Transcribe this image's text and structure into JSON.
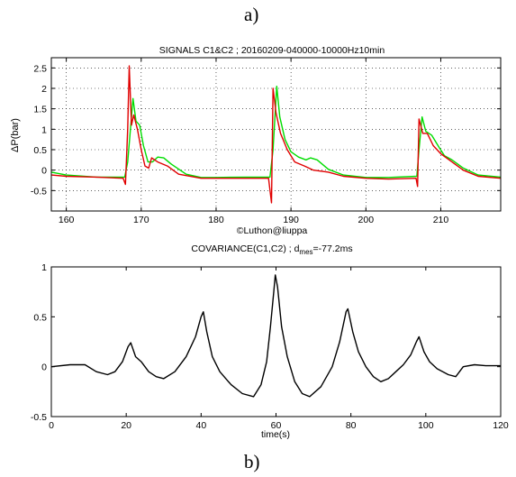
{
  "panel_labels": {
    "a": "a)",
    "b": "b)"
  },
  "chart_data": [
    {
      "type": "line",
      "title": "SIGNALS C1&C2 ; 20160209-040000-10000Hz10min",
      "ylabel": "ΔP(bar)",
      "xlabel": "",
      "credit": "©Luthon@liuppa",
      "xlim": [
        158,
        218
      ],
      "ylim": [
        -1,
        2.75
      ],
      "xticks": [
        "160",
        "170",
        "180",
        "190",
        "200",
        "210"
      ],
      "yticks": [
        "-0.5",
        "0",
        "0.5",
        "1",
        "1.5",
        "2",
        "2.5"
      ],
      "grid": true,
      "series": [
        {
          "color": "#00dd00",
          "points": [
            [
              158,
              -0.05
            ],
            [
              160,
              -0.12
            ],
            [
              164,
              -0.17
            ],
            [
              167.8,
              -0.17
            ],
            [
              168.2,
              0.2
            ],
            [
              168.9,
              1.75
            ],
            [
              169.3,
              1.2
            ],
            [
              169.8,
              1.1
            ],
            [
              170.3,
              0.6
            ],
            [
              170.9,
              0.2
            ],
            [
              171.5,
              0.2
            ],
            [
              172.2,
              0.32
            ],
            [
              173,
              0.3
            ],
            [
              174,
              0.15
            ],
            [
              176,
              -0.1
            ],
            [
              178,
              -0.18
            ],
            [
              180,
              -0.18
            ],
            [
              184,
              -0.17
            ],
            [
              187.2,
              -0.17
            ],
            [
              187.6,
              0.5
            ],
            [
              188.1,
              2.05
            ],
            [
              188.5,
              1.3
            ],
            [
              189.2,
              0.75
            ],
            [
              190,
              0.45
            ],
            [
              191,
              0.32
            ],
            [
              192,
              0.25
            ],
            [
              192.6,
              0.3
            ],
            [
              193.5,
              0.25
            ],
            [
              195,
              0.02
            ],
            [
              197,
              -0.12
            ],
            [
              200,
              -0.18
            ],
            [
              203,
              -0.18
            ],
            [
              206.8,
              -0.15
            ],
            [
              207.1,
              0.5
            ],
            [
              207.5,
              1.3
            ],
            [
              208,
              0.95
            ],
            [
              208.8,
              0.85
            ],
            [
              209.8,
              0.55
            ],
            [
              210.5,
              0.35
            ],
            [
              211.5,
              0.25
            ],
            [
              213,
              0.05
            ],
            [
              215,
              -0.12
            ],
            [
              218,
              -0.17
            ]
          ]
        },
        {
          "color": "#e00000",
          "points": [
            [
              158,
              -0.12
            ],
            [
              160,
              -0.15
            ],
            [
              164,
              -0.17
            ],
            [
              167.6,
              -0.2
            ],
            [
              167.9,
              -0.35
            ],
            [
              168.2,
              1.0
            ],
            [
              168.4,
              2.55
            ],
            [
              168.7,
              1.1
            ],
            [
              169,
              1.35
            ],
            [
              169.5,
              1.0
            ],
            [
              170,
              0.5
            ],
            [
              170.5,
              0.1
            ],
            [
              171,
              0.05
            ],
            [
              171.4,
              0.3
            ],
            [
              172.2,
              0.2
            ],
            [
              173.5,
              0.1
            ],
            [
              175,
              -0.1
            ],
            [
              178,
              -0.2
            ],
            [
              182,
              -0.2
            ],
            [
              187,
              -0.2
            ],
            [
              187.4,
              -0.8
            ],
            [
              187.6,
              2.0
            ],
            [
              188,
              1.4
            ],
            [
              188.6,
              0.9
            ],
            [
              189.5,
              0.5
            ],
            [
              190.5,
              0.2
            ],
            [
              191.8,
              0.1
            ],
            [
              193,
              0.0
            ],
            [
              195,
              -0.05
            ],
            [
              197,
              -0.15
            ],
            [
              200,
              -0.2
            ],
            [
              203,
              -0.22
            ],
            [
              206.7,
              -0.2
            ],
            [
              206.9,
              -0.4
            ],
            [
              207.1,
              1.25
            ],
            [
              207.6,
              0.9
            ],
            [
              208.2,
              0.9
            ],
            [
              209,
              0.6
            ],
            [
              210,
              0.4
            ],
            [
              211.5,
              0.2
            ],
            [
              213,
              0.0
            ],
            [
              215,
              -0.15
            ],
            [
              218,
              -0.2
            ]
          ]
        }
      ]
    },
    {
      "type": "line",
      "title": "COVARIANCE(C1,C2) ;  d",
      "title_sub": "mes",
      "title_suffix": "=-77.2ms",
      "xlabel": "time(s)",
      "ylabel": "",
      "xlim": [
        0,
        120
      ],
      "ylim": [
        -0.5,
        1
      ],
      "xticks": [
        "0",
        "20",
        "40",
        "60",
        "80",
        "100",
        "120"
      ],
      "yticks": [
        "-0.5",
        "0",
        "0.5",
        "1"
      ],
      "grid": false,
      "series": [
        {
          "color": "#000000",
          "points": [
            [
              0,
              0
            ],
            [
              5,
              0.02
            ],
            [
              9,
              0.02
            ],
            [
              12,
              -0.05
            ],
            [
              15,
              -0.08
            ],
            [
              17,
              -0.05
            ],
            [
              19,
              0.05
            ],
            [
              20.5,
              0.2
            ],
            [
              21.2,
              0.24
            ],
            [
              22.5,
              0.1
            ],
            [
              24,
              0.05
            ],
            [
              26,
              -0.05
            ],
            [
              28,
              -0.1
            ],
            [
              30,
              -0.12
            ],
            [
              33,
              -0.05
            ],
            [
              36,
              0.1
            ],
            [
              38.5,
              0.3
            ],
            [
              40,
              0.5
            ],
            [
              40.6,
              0.55
            ],
            [
              41.5,
              0.35
            ],
            [
              43,
              0.1
            ],
            [
              45,
              -0.05
            ],
            [
              48,
              -0.18
            ],
            [
              51,
              -0.27
            ],
            [
              54,
              -0.3
            ],
            [
              56,
              -0.18
            ],
            [
              57.5,
              0.05
            ],
            [
              58.5,
              0.4
            ],
            [
              59.4,
              0.75
            ],
            [
              59.8,
              0.92
            ],
            [
              60.4,
              0.8
            ],
            [
              61.5,
              0.4
            ],
            [
              63,
              0.1
            ],
            [
              65,
              -0.15
            ],
            [
              67,
              -0.27
            ],
            [
              69,
              -0.3
            ],
            [
              72,
              -0.2
            ],
            [
              75,
              0.0
            ],
            [
              77,
              0.25
            ],
            [
              78.7,
              0.55
            ],
            [
              79.2,
              0.58
            ],
            [
              80.5,
              0.35
            ],
            [
              82,
              0.15
            ],
            [
              84,
              0.0
            ],
            [
              86,
              -0.1
            ],
            [
              88,
              -0.15
            ],
            [
              90,
              -0.12
            ],
            [
              92,
              -0.05
            ],
            [
              94,
              0.02
            ],
            [
              96,
              0.12
            ],
            [
              97.5,
              0.25
            ],
            [
              98.2,
              0.3
            ],
            [
              99.5,
              0.15
            ],
            [
              101,
              0.05
            ],
            [
              103,
              -0.02
            ],
            [
              106,
              -0.08
            ],
            [
              108,
              -0.1
            ],
            [
              110,
              0.0
            ],
            [
              113,
              0.02
            ],
            [
              116,
              0.01
            ],
            [
              120,
              0.01
            ]
          ]
        }
      ]
    }
  ]
}
